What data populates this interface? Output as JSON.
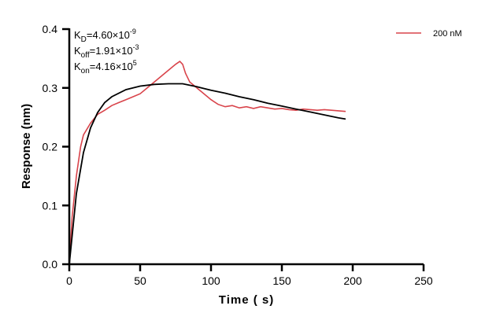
{
  "chart_data": {
    "type": "line",
    "title": "",
    "xlabel": "Time ( s)",
    "ylabel": "Response (nm)",
    "xlim": [
      0,
      250
    ],
    "ylim": [
      0,
      0.4
    ],
    "xticks": [
      0,
      50,
      100,
      150,
      200,
      250
    ],
    "yticks": [
      "0.0",
      "0.1",
      "0.2",
      "0.3",
      "0.4"
    ],
    "grid": false,
    "legend_placement": "top-right",
    "annotations": {
      "kd": {
        "main": "K",
        "sub": "D",
        "value": "=4.60×10",
        "exp": "-9"
      },
      "koff": {
        "main": "K",
        "sub": "off",
        "value": "=1.91×10",
        "exp": "-3"
      },
      "kon": {
        "main": "K",
        "sub": "on",
        "value": "=4.16×10",
        "exp": "5"
      }
    },
    "series": [
      {
        "name": "200 nM",
        "color": "#d9444b",
        "x": [
          0,
          2,
          5,
          8,
          10,
          15,
          20,
          25,
          30,
          35,
          40,
          45,
          50,
          55,
          60,
          65,
          70,
          75,
          78,
          80,
          82,
          85,
          90,
          95,
          100,
          105,
          110,
          115,
          120,
          125,
          130,
          135,
          140,
          145,
          150,
          155,
          160,
          165,
          170,
          175,
          180,
          185,
          190,
          195
        ],
        "y": [
          0,
          0.08,
          0.15,
          0.2,
          0.22,
          0.24,
          0.255,
          0.262,
          0.27,
          0.275,
          0.28,
          0.285,
          0.29,
          0.3,
          0.31,
          0.32,
          0.33,
          0.34,
          0.345,
          0.34,
          0.325,
          0.31,
          0.3,
          0.29,
          0.28,
          0.272,
          0.268,
          0.27,
          0.266,
          0.268,
          0.265,
          0.268,
          0.266,
          0.264,
          0.265,
          0.263,
          0.262,
          0.264,
          0.263,
          0.262,
          0.263,
          0.262,
          0.261,
          0.26
        ]
      },
      {
        "color": "#000000",
        "x": [
          0,
          5,
          10,
          15,
          20,
          25,
          30,
          40,
          50,
          60,
          70,
          80,
          90,
          100,
          110,
          120,
          130,
          140,
          150,
          160,
          170,
          180,
          190,
          195
        ],
        "y": [
          0,
          0.12,
          0.19,
          0.232,
          0.258,
          0.275,
          0.285,
          0.297,
          0.303,
          0.306,
          0.307,
          0.307,
          0.302,
          0.296,
          0.291,
          0.285,
          0.28,
          0.274,
          0.269,
          0.264,
          0.259,
          0.254,
          0.249,
          0.247
        ]
      }
    ]
  }
}
